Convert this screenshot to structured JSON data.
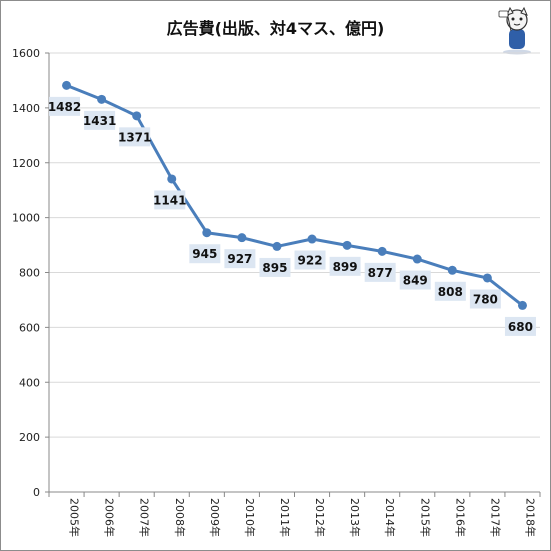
{
  "chart_data": {
    "type": "line",
    "title": "広告費(出版、対4マス、億円)",
    "categories": [
      "2005年",
      "2006年",
      "2007年",
      "2008年",
      "2009年",
      "2010年",
      "2011年",
      "2012年",
      "2013年",
      "2014年",
      "2015年",
      "2016年",
      "2017年",
      "2018年"
    ],
    "values": [
      1482,
      1431,
      1371,
      1141,
      945,
      927,
      895,
      922,
      899,
      877,
      849,
      808,
      780,
      680
    ],
    "yticks": [
      0,
      200,
      400,
      600,
      800,
      1000,
      1200,
      1400,
      1600
    ],
    "ylim": [
      0,
      1600
    ],
    "xlabel": "",
    "ylabel": "",
    "grid": true,
    "legend": "none",
    "colors": {
      "line": "#4a7ebb",
      "label_bg": "#dce6f2",
      "grid": "#d9d9d9"
    }
  },
  "decorations": {
    "mascot": "mascot-character-icon"
  }
}
